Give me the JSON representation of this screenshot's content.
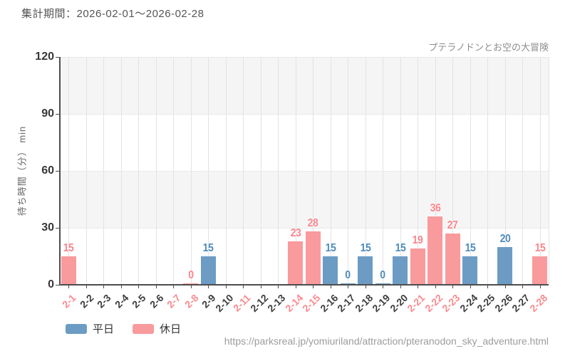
{
  "header": {
    "period_label": "集計期間：2026-02-01～2026-02-28",
    "attraction_name": "プテラノドンとお空の大冒険"
  },
  "legend": {
    "weekday_label": "平日",
    "holiday_label": "休日"
  },
  "footer": {
    "source_url": "https://parksreal.jp/yomiuriland/attraction/pteranodon_sky_adventure.html"
  },
  "colors": {
    "weekday_bar": "#6c9cc4",
    "weekday_text": "#4f8cbb",
    "holiday_bar": "#f99a9d",
    "holiday_text": "#f9868c",
    "weekday_tick_text": "#3d3d3d",
    "holiday_tick_text": "#fa8a8e",
    "axis": "#4d4d4d",
    "band": "#f5f5f5",
    "grid": "#e3e3e3"
  },
  "chart_data": {
    "type": "bar",
    "title": "プテラノドンとお空の大冒険",
    "xlabel": "",
    "ylabel": "待ち時間（分） min",
    "ylim": [
      0,
      120
    ],
    "yticks": [
      0,
      30,
      60,
      90,
      120
    ],
    "grid": "horizontal-bands-and-vertical-lines",
    "legend_position": "bottom-left",
    "series_names": [
      "平日",
      "休日"
    ],
    "categories": [
      "2-1",
      "2-2",
      "2-3",
      "2-4",
      "2-5",
      "2-6",
      "2-7",
      "2-8",
      "2-9",
      "2-10",
      "2-11",
      "2-12",
      "2-13",
      "2-14",
      "2-15",
      "2-16",
      "2-17",
      "2-18",
      "2-19",
      "2-20",
      "2-21",
      "2-22",
      "2-23",
      "2-24",
      "2-25",
      "2-26",
      "2-27",
      "2-28"
    ],
    "bars": [
      {
        "date": "2-1",
        "value": 15,
        "series": "休日",
        "holiday": true
      },
      {
        "date": "2-2",
        "value": null,
        "series": null,
        "holiday": false
      },
      {
        "date": "2-3",
        "value": null,
        "series": null,
        "holiday": false
      },
      {
        "date": "2-4",
        "value": null,
        "series": null,
        "holiday": false
      },
      {
        "date": "2-5",
        "value": null,
        "series": null,
        "holiday": false
      },
      {
        "date": "2-6",
        "value": null,
        "series": null,
        "holiday": false
      },
      {
        "date": "2-7",
        "value": null,
        "series": null,
        "holiday": true
      },
      {
        "date": "2-8",
        "value": 0,
        "series": "休日",
        "holiday": true
      },
      {
        "date": "2-9",
        "value": 15,
        "series": "平日",
        "holiday": false
      },
      {
        "date": "2-10",
        "value": null,
        "series": null,
        "holiday": false
      },
      {
        "date": "2-11",
        "value": null,
        "series": null,
        "holiday": true
      },
      {
        "date": "2-12",
        "value": null,
        "series": null,
        "holiday": false
      },
      {
        "date": "2-13",
        "value": null,
        "series": null,
        "holiday": false
      },
      {
        "date": "2-14",
        "value": 23,
        "series": "休日",
        "holiday": true
      },
      {
        "date": "2-15",
        "value": 28,
        "series": "休日",
        "holiday": true
      },
      {
        "date": "2-16",
        "value": 15,
        "series": "平日",
        "holiday": false
      },
      {
        "date": "2-17",
        "value": 0,
        "series": "平日",
        "holiday": false
      },
      {
        "date": "2-18",
        "value": 15,
        "series": "平日",
        "holiday": false
      },
      {
        "date": "2-19",
        "value": 0,
        "series": "平日",
        "holiday": false
      },
      {
        "date": "2-20",
        "value": 15,
        "series": "平日",
        "holiday": false
      },
      {
        "date": "2-21",
        "value": 19,
        "series": "休日",
        "holiday": true
      },
      {
        "date": "2-22",
        "value": 36,
        "series": "休日",
        "holiday": true
      },
      {
        "date": "2-23",
        "value": 27,
        "series": "休日",
        "holiday": true
      },
      {
        "date": "2-24",
        "value": 15,
        "series": "平日",
        "holiday": false
      },
      {
        "date": "2-25",
        "value": null,
        "series": null,
        "holiday": false
      },
      {
        "date": "2-26",
        "value": 20,
        "series": "平日",
        "holiday": false
      },
      {
        "date": "2-27",
        "value": null,
        "series": null,
        "holiday": false
      },
      {
        "date": "2-28",
        "value": 15,
        "series": "休日",
        "holiday": true
      }
    ]
  }
}
